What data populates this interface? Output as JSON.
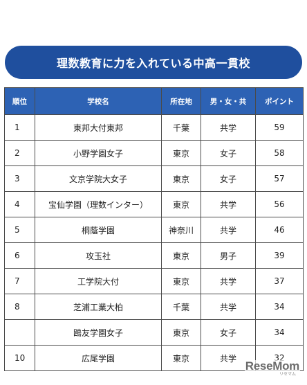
{
  "title": "理数教育に力を入れている中高一貫校",
  "table": {
    "headers": {
      "rank": "順位",
      "school": "学校名",
      "location": "所在地",
      "gender": "男・女・共",
      "points": "ポイント"
    },
    "rows": [
      {
        "rank": "1",
        "school": "東邦大付東邦",
        "location": "千葉",
        "gender": "共学",
        "points": "59"
      },
      {
        "rank": "2",
        "school": "小野学園女子",
        "location": "東京",
        "gender": "女子",
        "points": "58"
      },
      {
        "rank": "3",
        "school": "文京学院大女子",
        "location": "東京",
        "gender": "女子",
        "points": "57"
      },
      {
        "rank": "4",
        "school": "宝仙学園（理数インター）",
        "location": "東京",
        "gender": "共学",
        "points": "56"
      },
      {
        "rank": "5",
        "school": "桐蔭学園",
        "location": "神奈川",
        "gender": "共学",
        "points": "46"
      },
      {
        "rank": "6",
        "school": "攻玉社",
        "location": "東京",
        "gender": "男子",
        "points": "39"
      },
      {
        "rank": "7",
        "school": "工学院大付",
        "location": "東京",
        "gender": "共学",
        "points": "37"
      },
      {
        "rank": "8",
        "school": "芝浦工業大柏",
        "location": "千葉",
        "gender": "共学",
        "points": "34"
      },
      {
        "rank": "",
        "school": "鴎友学園女子",
        "location": "東京",
        "gender": "女子",
        "points": "34"
      },
      {
        "rank": "10",
        "school": "広尾学園",
        "location": "東京",
        "gender": "共学",
        "points": "32"
      }
    ]
  },
  "watermark": {
    "logo": "ReseMom",
    "sub": "リセマム"
  }
}
